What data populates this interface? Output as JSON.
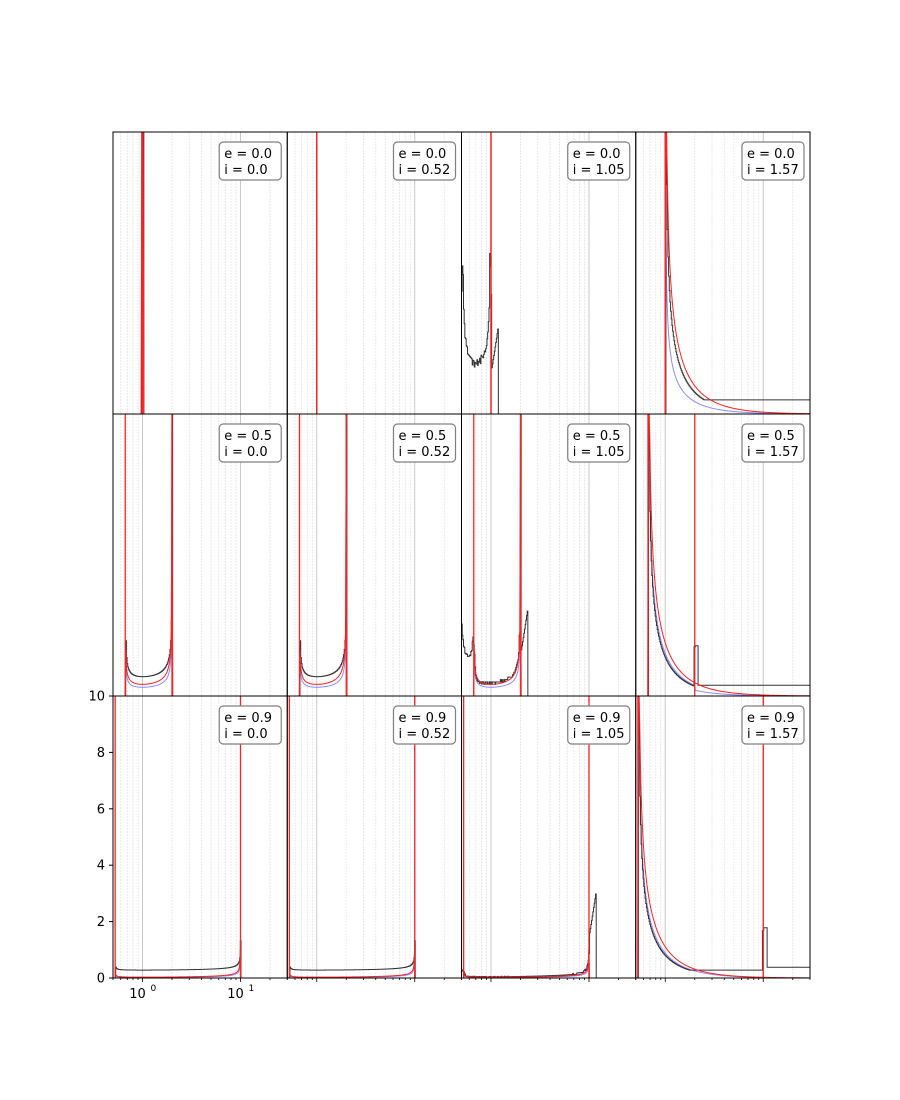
{
  "chart_data": {
    "type": "line",
    "layout": "3x4 grid of panels, shared axes",
    "xscale": "log",
    "xlim": [
      0.5,
      30
    ],
    "ylim": [
      0,
      10
    ],
    "grid": "x-axis major and minor vertical lines",
    "yticks": [
      0,
      2,
      4,
      6,
      8,
      10
    ],
    "ytick_labels": [
      "0",
      "2",
      "4",
      "6",
      "8",
      "10"
    ],
    "xtick_labels": [
      {
        "base": "10",
        "exp": "0",
        "value": 1
      },
      {
        "base": "10",
        "exp": "1",
        "value": 10
      }
    ],
    "series_styles": [
      {
        "key": "hist",
        "color": "#333333",
        "style": "step"
      },
      {
        "key": "red",
        "color": "#ff2020",
        "style": "line"
      },
      {
        "key": "blue",
        "color": "#8080ff",
        "style": "line"
      }
    ],
    "panels": [
      {
        "label_e": "e = 0.0",
        "label_i": "i = 0.0",
        "e": 0.0,
        "i": 0.0,
        "q": 1.0,
        "Q": 1.0
      },
      {
        "label_e": "e = 0.0",
        "label_i": "i = 0.52",
        "e": 0.0,
        "i": 0.52,
        "q": 1.0,
        "Q": 1.0
      },
      {
        "label_e": "e = 0.0",
        "label_i": "i = 1.05",
        "e": 0.0,
        "i": 1.05,
        "q": 1.0,
        "Q": 1.0
      },
      {
        "label_e": "e = 0.0",
        "label_i": "i = 1.57",
        "e": 0.0,
        "i": 1.57,
        "q": 1.0,
        "Q": 1.0
      },
      {
        "label_e": "e = 0.5",
        "label_i": "i = 0.0",
        "e": 0.5,
        "i": 0.0,
        "q": 0.667,
        "Q": 2.0
      },
      {
        "label_e": "e = 0.5",
        "label_i": "i = 0.52",
        "e": 0.5,
        "i": 0.52,
        "q": 0.667,
        "Q": 2.0
      },
      {
        "label_e": "e = 0.5",
        "label_i": "i = 1.05",
        "e": 0.5,
        "i": 1.05,
        "q": 0.667,
        "Q": 2.0
      },
      {
        "label_e": "e = 0.5",
        "label_i": "i = 1.57",
        "e": 0.5,
        "i": 1.57,
        "q": 0.667,
        "Q": 2.0
      },
      {
        "label_e": "e = 0.9",
        "label_i": "i = 0.0",
        "e": 0.9,
        "i": 0.0,
        "q": 0.526,
        "Q": 10.0
      },
      {
        "label_e": "e = 0.9",
        "label_i": "i = 0.52",
        "e": 0.9,
        "i": 0.52,
        "q": 0.526,
        "Q": 10.0
      },
      {
        "label_e": "e = 0.9",
        "label_i": "i = 1.05",
        "e": 0.9,
        "i": 1.05,
        "q": 0.526,
        "Q": 10.0
      },
      {
        "label_e": "e = 0.9",
        "label_i": "i = 1.57",
        "e": 0.9,
        "i": 1.57,
        "q": 0.526,
        "Q": 10.0
      }
    ]
  }
}
